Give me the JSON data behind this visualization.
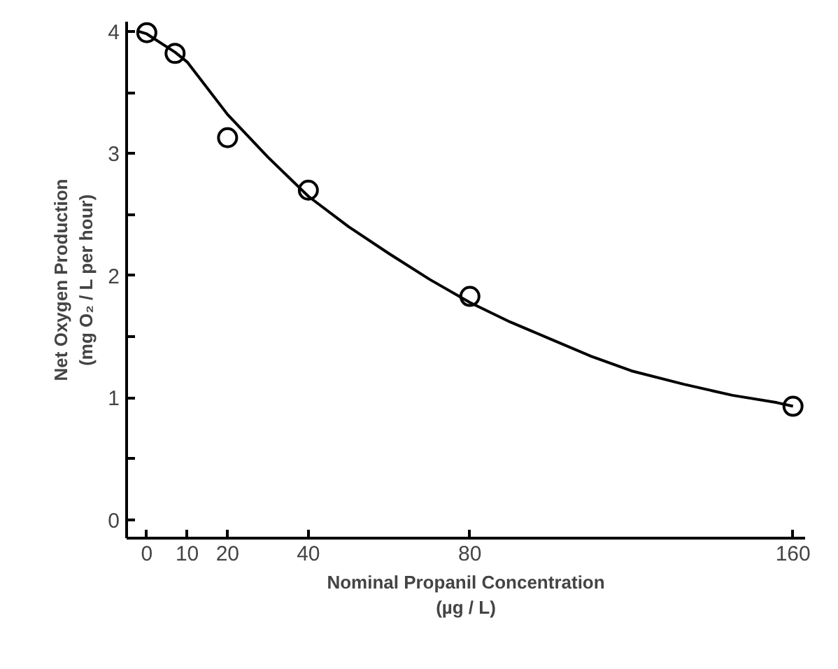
{
  "chart_data": {
    "type": "scatter",
    "xlabel": "Nominal Propanil Concentration\n(µg / L)",
    "ylabel": "Net Oxygen Production\n(mg O₂ / L per hour)",
    "xlim": [
      -5,
      163
    ],
    "ylim": [
      -0.15,
      4.08
    ],
    "xticks": [
      0,
      10,
      20,
      40,
      80,
      160
    ],
    "yticks": [
      0,
      {
        "value": 0.5,
        "label": null
      },
      1,
      {
        "value": 1.5,
        "label": null
      },
      2,
      {
        "value": 2.5,
        "label": null
      },
      3,
      {
        "value": 3.5,
        "label": null
      },
      4
    ],
    "grid": false,
    "marker": "circle",
    "series": [
      {
        "color": "#000000",
        "x": [
          0,
          7,
          20,
          40,
          80,
          160
        ],
        "values": [
          3.99,
          3.82,
          3.13,
          2.7,
          1.83,
          0.93
        ]
      },
      {
        "type": "line",
        "color": "#000000",
        "line_style": "solid",
        "marker": "none",
        "x": [
          -2,
          0,
          7,
          10,
          20,
          30,
          40,
          50,
          60,
          70,
          80,
          90,
          100,
          110,
          120,
          133,
          145,
          156,
          160
        ],
        "values": [
          4.0,
          3.98,
          3.83,
          3.75,
          3.32,
          2.97,
          2.65,
          2.4,
          2.18,
          1.97,
          1.78,
          1.62,
          1.48,
          1.34,
          1.22,
          1.11,
          1.02,
          0.96,
          0.93
        ]
      }
    ]
  }
}
